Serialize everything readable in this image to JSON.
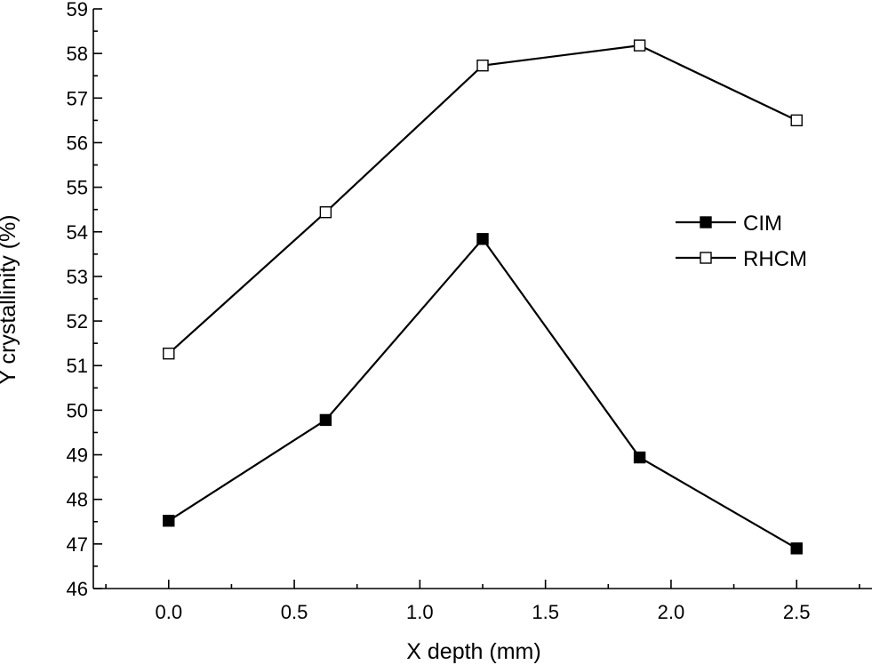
{
  "chart_data": {
    "type": "line",
    "xlabel": "X depth (mm)",
    "ylabel": "Y crystallinity (%)",
    "xlim": [
      -0.3,
      2.8
    ],
    "ylim": [
      46,
      59
    ],
    "xticks": [
      0.0,
      0.5,
      1.0,
      1.5,
      2.0,
      2.5
    ],
    "xtick_labels": [
      "0.0",
      "0.5",
      "1.0",
      "1.5",
      "2.0",
      "2.5"
    ],
    "yticks": [
      46,
      47,
      48,
      49,
      50,
      51,
      52,
      53,
      54,
      55,
      56,
      57,
      58,
      59
    ],
    "ytick_labels": [
      "46",
      "47",
      "48",
      "49",
      "50",
      "51",
      "52",
      "53",
      "54",
      "55",
      "56",
      "57",
      "58",
      "59"
    ],
    "x": [
      0.0,
      0.625,
      1.25,
      1.875,
      2.5
    ],
    "series": [
      {
        "name": "CIM",
        "marker": "filled-square",
        "values": [
          47.52,
          49.78,
          53.84,
          48.94,
          46.9
        ]
      },
      {
        "name": "RHCM",
        "marker": "open-square",
        "values": [
          51.27,
          54.44,
          57.73,
          58.18,
          56.5
        ]
      }
    ],
    "legend_position": "right",
    "grid": false,
    "colors": {
      "line": "#000000",
      "filled_marker": "#000000",
      "open_marker_fill": "#ffffff"
    }
  }
}
